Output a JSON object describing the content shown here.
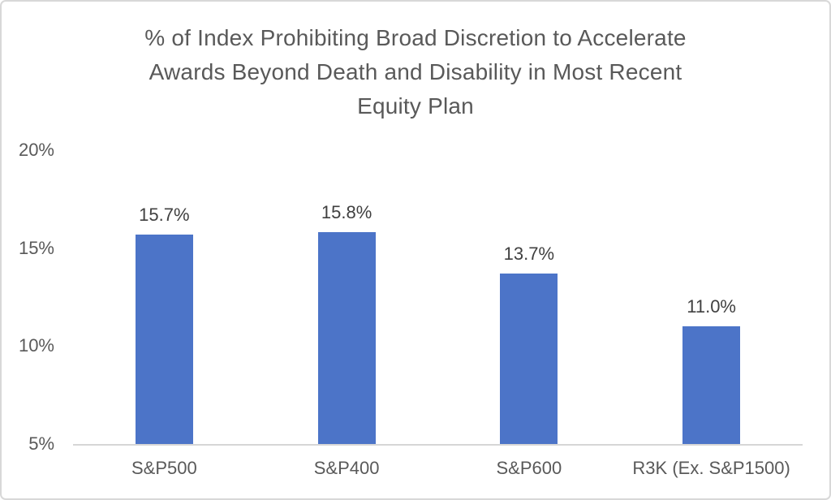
{
  "chart_data": {
    "type": "bar",
    "title": "% of Index Prohibiting Broad Discretion to Accelerate Awards Beyond Death and Disability in Most Recent Equity Plan",
    "title_lines": [
      "% of Index Prohibiting Broad Discretion to Accelerate",
      "Awards Beyond Death and Disability in Most Recent",
      "Equity Plan"
    ],
    "categories": [
      "S&P500",
      "S&P400",
      "S&P600",
      "R3K (Ex. S&P1500)"
    ],
    "values": [
      15.7,
      15.8,
      13.7,
      11.0
    ],
    "data_labels": [
      "15.7%",
      "15.8%",
      "13.7%",
      "11.0%"
    ],
    "xlabel": "",
    "ylabel": "",
    "ylim": [
      5,
      20
    ],
    "y_ticks": [
      {
        "value": 20,
        "label": "20%"
      },
      {
        "value": 15,
        "label": "15%"
      },
      {
        "value": 10,
        "label": "10%"
      },
      {
        "value": 5,
        "label": "5%"
      }
    ],
    "gridlines": false,
    "legend_position": "none",
    "colors": {
      "bar_fill": "#4c74c8",
      "title_text": "#595959",
      "axis_tick_text": "#595959",
      "category_text": "#595959",
      "data_label_text": "#404040",
      "axis_line": "#d6d6d6",
      "frame_border": "#d8d8d8",
      "background": "#ffffff"
    }
  }
}
